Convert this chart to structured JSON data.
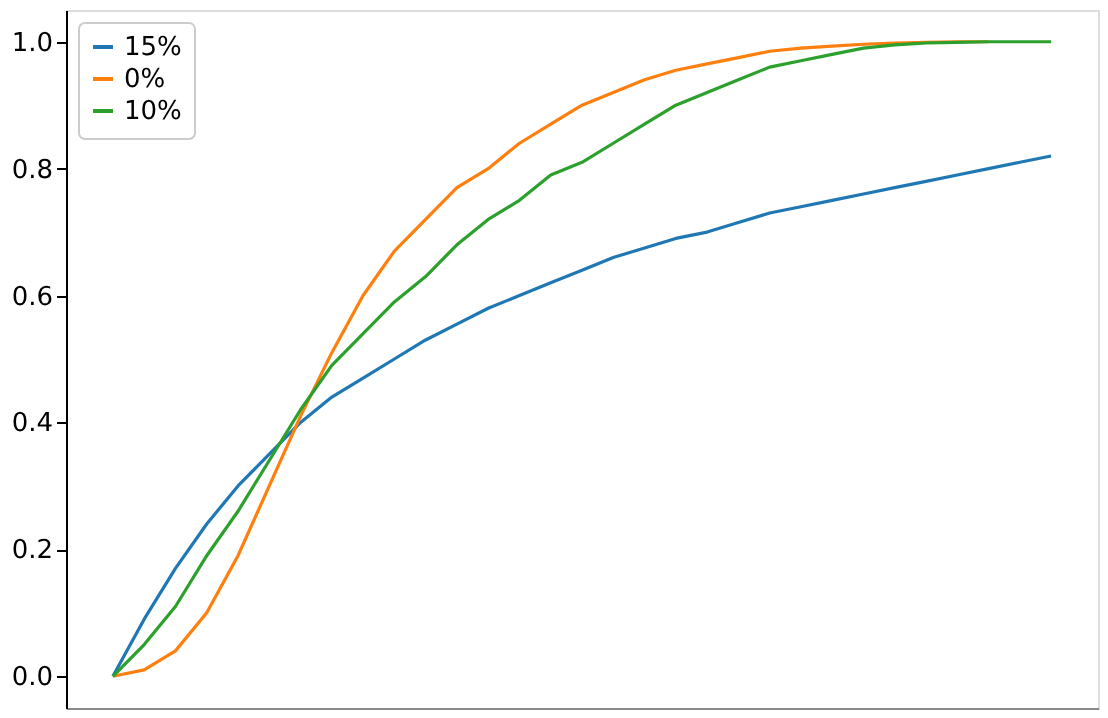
{
  "chart_data": {
    "type": "line",
    "categories": [
      null,
      null,
      null,
      null,
      null,
      null,
      null,
      null,
      null,
      null,
      null,
      null,
      null,
      null,
      null,
      null,
      null,
      null,
      null,
      null,
      null,
      null,
      null,
      null,
      null,
      null,
      null,
      null,
      null,
      null,
      null
    ],
    "series": [
      {
        "name": "15%",
        "color": "#1f77b4",
        "values": [
          0,
          0.09,
          0.17,
          0.24,
          0.3,
          0.35,
          0.4,
          0.44,
          0.47,
          0.5,
          0.53,
          0.555,
          0.58,
          0.6,
          0.62,
          0.64,
          0.66,
          0.675,
          0.69,
          0.7,
          0.715,
          0.73,
          0.74,
          0.75,
          0.76,
          0.77,
          0.78,
          0.79,
          0.8,
          0.81,
          0.82
        ]
      },
      {
        "name": "0%",
        "color": "#ff7f0e",
        "values": [
          0,
          0.01,
          0.04,
          0.1,
          0.19,
          0.3,
          0.41,
          0.51,
          0.6,
          0.67,
          0.72,
          0.77,
          0.8,
          0.84,
          0.87,
          0.9,
          0.92,
          0.94,
          0.955,
          0.965,
          0.975,
          0.985,
          0.99,
          0.993,
          0.996,
          0.998,
          0.999,
          1,
          1,
          null,
          null
        ]
      },
      {
        "name": "10%",
        "color": "#2ca02c",
        "values": [
          0,
          0.05,
          0.11,
          0.19,
          0.26,
          0.34,
          0.42,
          0.49,
          0.54,
          0.59,
          0.63,
          0.68,
          0.72,
          0.75,
          0.79,
          0.81,
          0.84,
          0.87,
          0.9,
          0.92,
          0.94,
          0.96,
          0.97,
          0.98,
          0.99,
          0.995,
          0.998,
          0.999,
          1,
          1,
          1
        ]
      }
    ],
    "ylim": [
      -0.05,
      1.05
    ],
    "yticks": [
      {
        "value": 0,
        "label": "0.0"
      },
      0.2,
      0.4,
      0.6,
      0.8,
      {
        "value": 1,
        "label": "1.0"
      }
    ],
    "tick_labels": "y",
    "grid": false,
    "legend": "top left",
    "line_style": "solid",
    "marker": "none"
  }
}
